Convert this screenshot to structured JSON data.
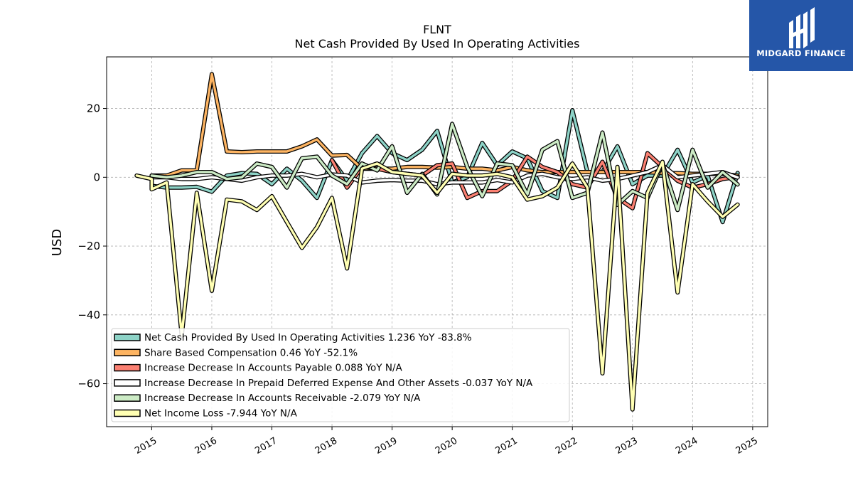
{
  "brand": {
    "name": "MIDGARD FINANCE",
    "color": "#2556a8"
  },
  "chart_data": {
    "type": "line",
    "title": "FLNT",
    "subtitle": "Net Cash Provided By Used In Operating Activities",
    "xlabel": "",
    "ylabel": "USD",
    "xlim": [
      2014.25,
      2025.25
    ],
    "ylim": [
      -72.5,
      35
    ],
    "x_ticks": [
      "2015",
      "2016",
      "2017",
      "2018",
      "2019",
      "2020",
      "2021",
      "2022",
      "2023",
      "2024",
      "2025"
    ],
    "y_ticks": [
      20,
      0,
      -20,
      -40,
      -60
    ],
    "y_tick_labels": [
      "20",
      "0",
      "−20",
      "−40",
      "−60"
    ],
    "grid": true,
    "legend_position": "lower-left",
    "series": [
      {
        "name": "Net Cash Provided By Used In Operating Activities",
        "legend_label": "Net Cash Provided By Used In Operating Activities  1.236 YoY -83.8%",
        "color": "#8dd3c7",
        "x": [
          2015.0,
          2015.25,
          2015.5,
          2015.75,
          2016.0,
          2016.25,
          2016.5,
          2016.75,
          2017.0,
          2017.25,
          2017.5,
          2017.75,
          2018.0,
          2018.25,
          2018.5,
          2018.75,
          2019.0,
          2019.25,
          2019.5,
          2019.75,
          2020.0,
          2020.25,
          2020.5,
          2020.75,
          2021.0,
          2021.25,
          2021.5,
          2021.75,
          2022.0,
          2022.25,
          2022.5,
          2022.75,
          2023.0,
          2023.25,
          2023.5,
          2023.75,
          2024.0,
          2024.25,
          2024.5,
          2024.75
        ],
        "y": [
          -2.5,
          -3,
          -3,
          -2.8,
          -4.2,
          0.5,
          1.2,
          1,
          -2,
          2.5,
          -1,
          -6,
          5,
          -1,
          7,
          12,
          7,
          5,
          8,
          13.5,
          -1.5,
          0,
          10,
          3.5,
          7.5,
          5.5,
          -4,
          -6,
          19.5,
          1.5,
          1.5,
          9,
          -2,
          0.5,
          0.5,
          8,
          -1.5,
          0.5,
          -13,
          1.236
        ]
      },
      {
        "name": "Share Based Compensation",
        "legend_label": "Share Based Compensation  0.46 YoY -52.1%",
        "color": "#fdb462",
        "x": [
          2015.0,
          2015.25,
          2015.5,
          2015.75,
          2016.0,
          2016.25,
          2016.5,
          2016.75,
          2017.0,
          2017.25,
          2017.5,
          2017.75,
          2018.0,
          2018.25,
          2018.5,
          2018.75,
          2019.0,
          2019.25,
          2019.5,
          2019.75,
          2020.0,
          2020.25,
          2020.5,
          2020.75,
          2021.0,
          2021.25,
          2021.5,
          2021.75,
          2022.0,
          2022.25,
          2022.5,
          2022.75,
          2023.0,
          2023.25,
          2023.5,
          2023.75,
          2024.0,
          2024.25,
          2024.5,
          2024.75
        ],
        "y": [
          0.5,
          0.5,
          2,
          2,
          30,
          7.5,
          7.3,
          7.5,
          7.5,
          7.5,
          9,
          11,
          6.3,
          6.5,
          2.5,
          2.5,
          2.5,
          3,
          3,
          2.8,
          3,
          2.5,
          2.5,
          2,
          3,
          2,
          1.5,
          1.5,
          1.5,
          1.5,
          1.5,
          1.5,
          1.5,
          1.5,
          1.2,
          1.2,
          1,
          1,
          1,
          0.46
        ]
      },
      {
        "name": "Increase Decrease In Accounts Payable",
        "legend_label": "Increase Decrease In Accounts Payable  0.088 YoY N/A",
        "color": "#fb8072",
        "x": [
          2018.0,
          2018.25,
          2018.5,
          2018.75,
          2019.0,
          2019.25,
          2019.5,
          2019.75,
          2020.0,
          2020.25,
          2020.5,
          2020.75,
          2021.0,
          2021.25,
          2021.5,
          2021.75,
          2022.0,
          2022.25,
          2022.5,
          2022.75,
          2023.0,
          2023.25,
          2023.5,
          2023.75,
          2024.0,
          2024.25,
          2024.5,
          2024.75
        ],
        "y": [
          5,
          -3,
          3,
          2.5,
          1.5,
          1,
          0.5,
          3.5,
          4,
          -6,
          -4,
          -4,
          -1,
          6,
          3,
          1.5,
          -2,
          -3,
          4.5,
          -6,
          -9,
          7,
          3,
          -1,
          -3,
          -2,
          -0.5,
          0.088
        ]
      },
      {
        "name": "Increase Decrease In Prepaid Deferred Expense And Other Assets",
        "legend_label": "Increase Decrease In Prepaid Deferred Expense And Other Assets  -0.037 YoY N/A",
        "color": "#ffffff",
        "x": [
          2015.0,
          2015.25,
          2015.5,
          2015.75,
          2016.0,
          2016.25,
          2016.5,
          2016.75,
          2017.0,
          2017.25,
          2017.5,
          2017.75,
          2018.0,
          2018.25,
          2018.5,
          2018.75,
          2019.0,
          2019.25,
          2019.5,
          2019.75,
          2020.0,
          2020.25,
          2020.5,
          2020.75,
          2021.0,
          2021.25,
          2021.5,
          2021.75,
          2022.0,
          2022.25,
          2022.5,
          2022.75,
          2023.0,
          2023.25,
          2023.5,
          2023.75,
          2024.0,
          2024.25,
          2024.5,
          2024.75
        ],
        "y": [
          0,
          0,
          -0.5,
          -0.5,
          0,
          -0.5,
          -1,
          0,
          0.5,
          0.5,
          1,
          0,
          0.8,
          0.5,
          -1.5,
          -1,
          -0.8,
          -1,
          -1,
          -2,
          -1.5,
          -1.5,
          -1.5,
          -0.8,
          -1.5,
          0.5,
          1,
          0,
          -0.5,
          0,
          -1,
          -0.5,
          0.5,
          1.5,
          3.5,
          0,
          0.5,
          1,
          1.5,
          -0.037
        ]
      },
      {
        "name": "Increase Decrease In Accounts Receivable",
        "legend_label": "Increase Decrease In Accounts Receivable  -2.079 YoY N/A",
        "color": "#ccebc5",
        "x": [
          2015.0,
          2015.25,
          2015.5,
          2015.75,
          2016.0,
          2016.25,
          2016.5,
          2016.75,
          2017.0,
          2017.25,
          2017.5,
          2017.75,
          2018.0,
          2018.25,
          2018.5,
          2018.75,
          2019.0,
          2019.25,
          2019.5,
          2019.75,
          2020.0,
          2020.25,
          2020.5,
          2020.75,
          2021.0,
          2021.25,
          2021.5,
          2021.75,
          2022.0,
          2022.25,
          2022.5,
          2022.75,
          2023.0,
          2023.25,
          2023.5,
          2023.75,
          2024.0,
          2024.25,
          2024.5,
          2024.75
        ],
        "y": [
          0.5,
          0,
          0.5,
          1.5,
          1.5,
          -0.5,
          0,
          4,
          3,
          -3,
          5.5,
          6,
          0.5,
          -2,
          4,
          2,
          9,
          -4.5,
          1,
          -5,
          15.5,
          3,
          -5.5,
          4,
          3.5,
          -5,
          8,
          10.5,
          -6,
          -4.5,
          13,
          -8,
          -4,
          -6,
          4,
          -9.5,
          8,
          -3,
          1.5,
          -2.079
        ]
      },
      {
        "name": "Net Income Loss",
        "legend_label": "Net Income Loss  -7.944 YoY N/A",
        "color": "#ffffb3",
        "x": [
          2014.75,
          2015.0,
          2015.0,
          2015.25,
          2015.5,
          2015.75,
          2016.0,
          2016.25,
          2016.5,
          2016.75,
          2017.0,
          2017.25,
          2017.5,
          2017.75,
          2018.0,
          2018.25,
          2018.5,
          2018.75,
          2019.0,
          2019.25,
          2019.5,
          2019.75,
          2020.0,
          2020.25,
          2020.5,
          2020.75,
          2021.0,
          2021.25,
          2021.5,
          2021.75,
          2022.0,
          2022.25,
          2022.5,
          2022.75,
          2023.0,
          2023.25,
          2023.5,
          2023.75,
          2024.0,
          2024.25,
          2024.5,
          2024.75
        ],
        "y": [
          0.5,
          -0.5,
          -3.5,
          -1.5,
          -46,
          -4.5,
          -33,
          -6.5,
          -7,
          -9.5,
          -5.5,
          -13,
          -20.5,
          -14.5,
          -6,
          -26.5,
          2.5,
          4,
          1.5,
          1,
          0.5,
          -4.5,
          1,
          0.5,
          0.5,
          1,
          0,
          -6.5,
          -5.5,
          -3,
          4,
          -3,
          -57,
          3,
          -67.5,
          -4.5,
          4.5,
          -33.5,
          -2,
          -7,
          -11.5,
          -7.944
        ]
      }
    ]
  }
}
